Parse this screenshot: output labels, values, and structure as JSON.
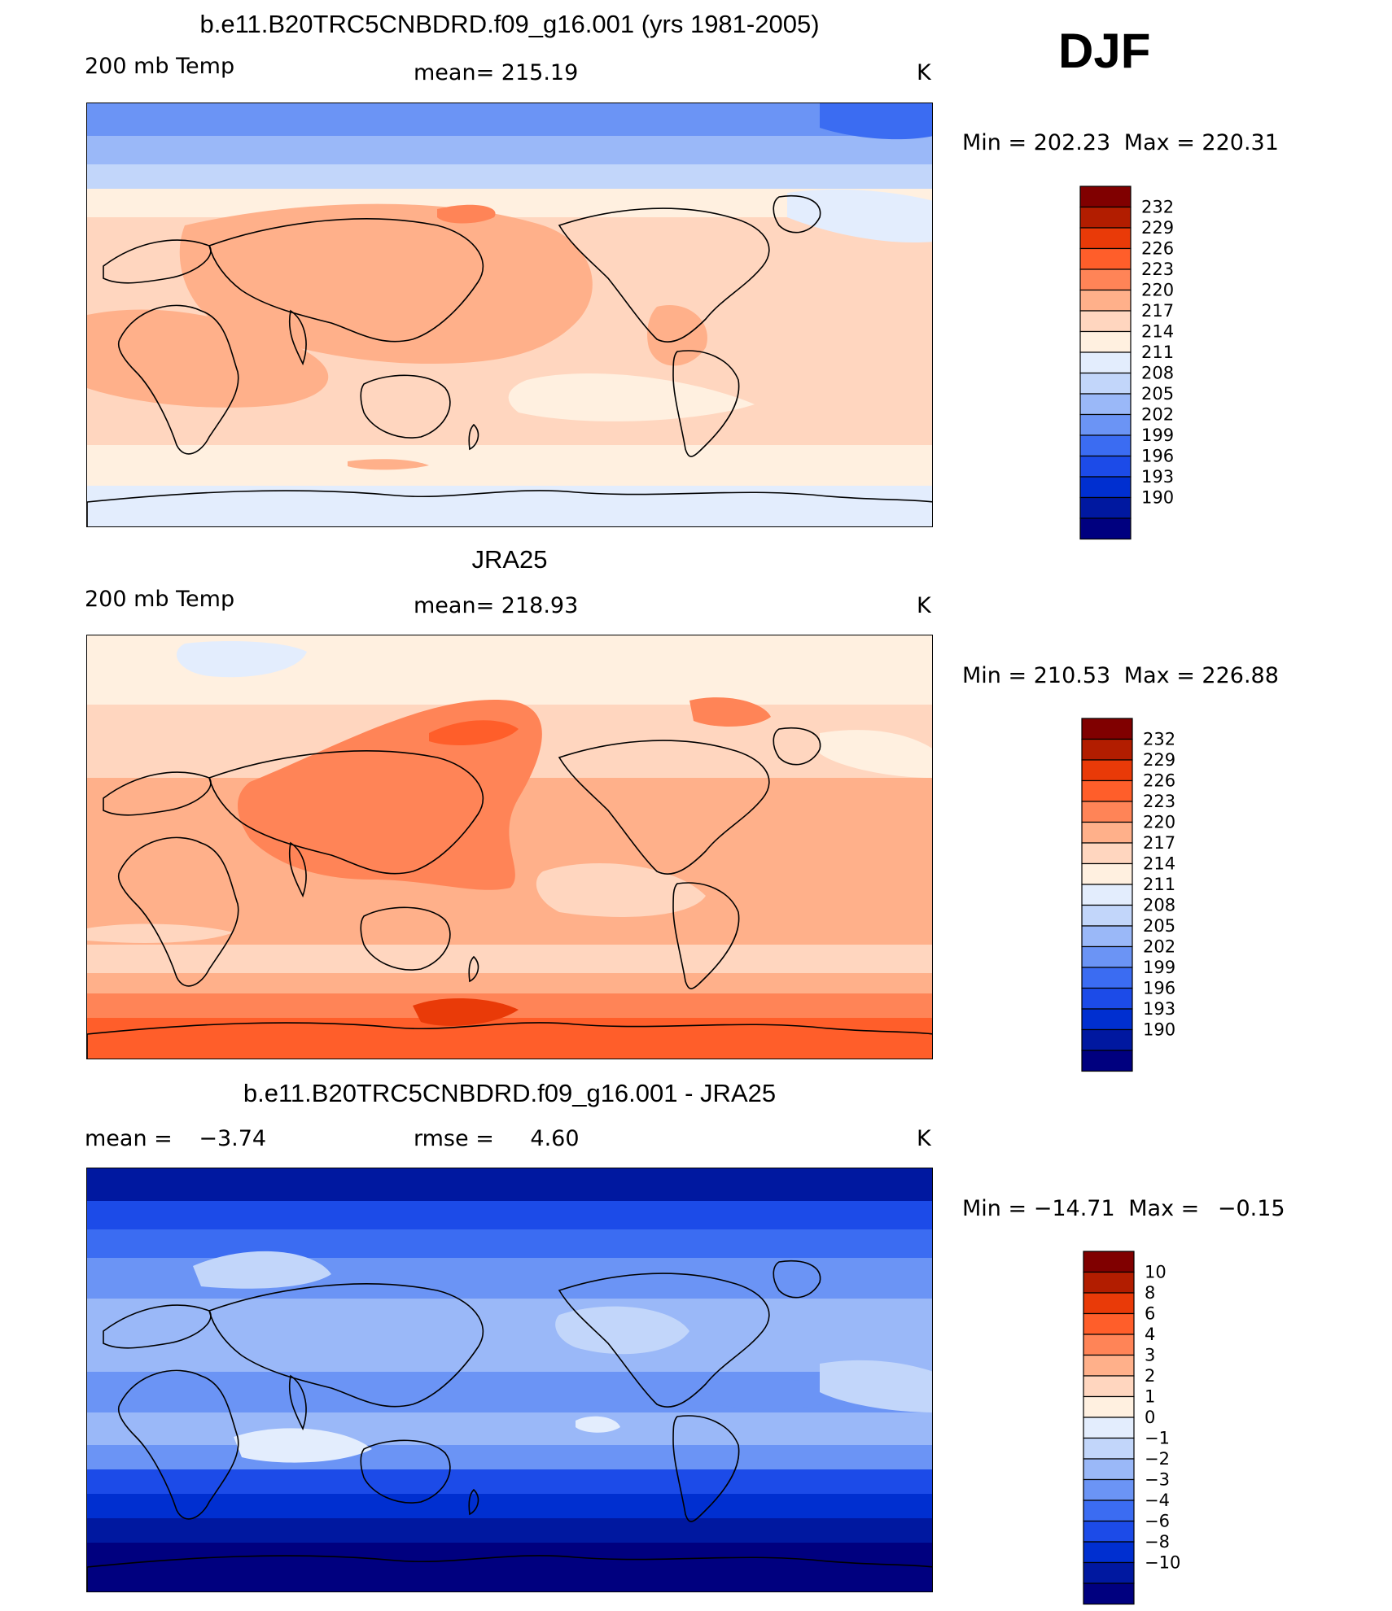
{
  "season": "DJF",
  "colors": {
    "abs_scale": [
      "#00007f",
      "#0018a0",
      "#002fd0",
      "#1c4be8",
      "#3b6cf2",
      "#6b94f5",
      "#9ab8f8",
      "#c2d6fa",
      "#e3edfd",
      "#fff0e0",
      "#ffd6bf",
      "#ffb08a",
      "#ff8457",
      "#ff5e2a",
      "#e93a08",
      "#b21d00",
      "#800000"
    ],
    "diff_scale": [
      "#00007f",
      "#0018a0",
      "#002fd0",
      "#1c4be8",
      "#3b6cf2",
      "#6b94f5",
      "#9ab8f8",
      "#c2d6fa",
      "#e3edfd",
      "#fff0e0",
      "#ffd6bf",
      "#ffb08a",
      "#ff8457",
      "#ff5e2a",
      "#e93a08",
      "#b21d00",
      "#800000"
    ],
    "coastline": "#000000"
  },
  "chart_data": [
    {
      "type": "heatmap",
      "title": "b.e11.B20TRC5CNBDRD.f09_g16.001 (yrs 1981-2005)",
      "left_label": "200 mb Temp",
      "mean_label": "mean=",
      "mean_value": "215.19",
      "units": "K",
      "min_label": "Min =",
      "min_value": "202.23",
      "max_label": "Max =",
      "max_value": "220.31",
      "colorbar_ticks": [
        "232",
        "229",
        "226",
        "223",
        "220",
        "217",
        "214",
        "211",
        "208",
        "205",
        "202",
        "199",
        "196",
        "193",
        "190"
      ],
      "field": "model"
    },
    {
      "type": "heatmap",
      "title": "JRA25",
      "left_label": "200 mb Temp",
      "mean_label": "mean=",
      "mean_value": "218.93",
      "units": "K",
      "min_label": "Min =",
      "min_value": "210.53",
      "max_label": "Max =",
      "max_value": "226.88",
      "colorbar_ticks": [
        "232",
        "229",
        "226",
        "223",
        "220",
        "217",
        "214",
        "211",
        "208",
        "205",
        "202",
        "199",
        "196",
        "193",
        "190"
      ],
      "field": "obs"
    },
    {
      "type": "heatmap",
      "title": "b.e11.B20TRC5CNBDRD.f09_g16.001 - JRA25",
      "left_label": "mean =",
      "mean_value": "-3.74",
      "rmse_label": "rmse =",
      "rmse_value": "4.60",
      "units": "K",
      "min_label": "Min =",
      "min_value": "-14.71",
      "max_label": "Max =",
      "max_value": "-0.15",
      "colorbar_ticks": [
        "10",
        "8",
        "6",
        "4",
        "3",
        "2",
        "1",
        "0",
        "-1",
        "-2",
        "-3",
        "-4",
        "-6",
        "-8",
        "-10"
      ],
      "field": "diff"
    }
  ]
}
